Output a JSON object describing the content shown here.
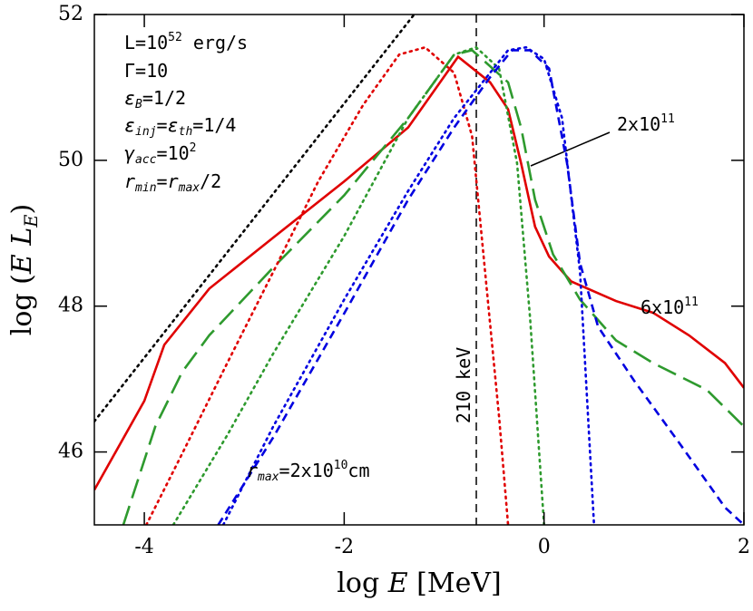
{
  "chart_data": {
    "type": "line",
    "xlabel": [
      {
        "text": "log "
      },
      {
        "text": "E",
        "style": "italic"
      },
      {
        "text": " [MeV]"
      }
    ],
    "ylabel": [
      {
        "text": "log ("
      },
      {
        "text": "E",
        "style": "italic"
      },
      {
        "text": " "
      },
      {
        "text": "L",
        "style": "italic"
      },
      {
        "text": "E",
        "style": "sub"
      },
      {
        "text": ")"
      }
    ],
    "xlim": [
      -4.5,
      2
    ],
    "ylim": [
      45,
      52
    ],
    "xticks": [
      -4,
      -2,
      0,
      2
    ],
    "yticks": [
      46,
      48,
      50,
      52
    ],
    "reference_line_x": -0.678,
    "series": [
      {
        "color": "#e00000",
        "dash": "solid",
        "x": [
          -4.5,
          -4,
          -3.8,
          -3.35,
          -2.71,
          -2,
          -1.36,
          -0.86,
          -0.54,
          -0.36,
          -0.23,
          -0.09,
          0.05,
          0.27,
          0.72,
          1.09,
          1.45,
          1.81,
          2
        ],
        "values": [
          45.48,
          46.7,
          47.47,
          48.24,
          48.94,
          49.71,
          50.45,
          51.42,
          51.07,
          50.7,
          49.96,
          49.09,
          48.68,
          48.34,
          48.07,
          47.91,
          47.6,
          47.22,
          46.88
        ]
      },
      {
        "color": "#2e9a2e",
        "dash": "long",
        "x": [
          -4.21,
          -3.89,
          -3.62,
          -3.35,
          -2.71,
          -2,
          -1.36,
          -0.9,
          -0.72,
          -0.36,
          -0.23,
          -0.09,
          0.09,
          0.36,
          0.72,
          1.09,
          1.63,
          2
        ],
        "values": [
          45,
          46.35,
          47.1,
          47.6,
          48.53,
          49.52,
          50.58,
          51.45,
          51.51,
          51.07,
          50.45,
          49.46,
          48.71,
          48.09,
          47.53,
          47.22,
          46.85,
          46.35
        ]
      },
      {
        "color": "#e00000",
        "dash": "dot",
        "x": [
          -3.98,
          -3.62,
          -3.17,
          -2.71,
          -2.26,
          -1.81,
          -1.45,
          -1.19,
          -0.9,
          -0.72,
          -0.59,
          -0.45,
          -0.36
        ],
        "values": [
          45,
          45.98,
          47.22,
          48.47,
          49.71,
          50.76,
          51.45,
          51.55,
          51.2,
          50.33,
          48.47,
          46.48,
          45
        ]
      },
      {
        "color": "#2e9a2e",
        "dash": "dot",
        "x": [
          -3.71,
          -3.17,
          -2.71,
          -2,
          -1.36,
          -0.9,
          -0.68,
          -0.45,
          -0.27,
          -0.14,
          0
        ],
        "values": [
          45,
          46.23,
          47.35,
          48.96,
          50.58,
          51.45,
          51.55,
          51.26,
          49.96,
          47.84,
          45
        ]
      },
      {
        "color": "#0000e0",
        "dash": "dot",
        "x": [
          -3.21,
          -2.71,
          -2,
          -1.36,
          -0.9,
          -0.54,
          -0.36,
          -0.18,
          0,
          0.18,
          0.36,
          0.5
        ],
        "values": [
          45,
          46.35,
          48.09,
          49.58,
          50.58,
          51.2,
          51.51,
          51.55,
          51.39,
          50.58,
          48.47,
          45
        ]
      },
      {
        "color": "#0000e0",
        "dash": "short",
        "x": [
          -3.26,
          -2.71,
          -2,
          -1.36,
          -0.9,
          -0.54,
          -0.32,
          -0.14,
          0.05,
          0.23,
          0.36,
          0.54,
          0.9,
          1.36,
          1.81,
          2
        ],
        "values": [
          45,
          46.2,
          47.9,
          49.46,
          50.45,
          51.14,
          51.51,
          51.51,
          51.26,
          49.96,
          48.59,
          47.72,
          46.98,
          46.11,
          45.24,
          45
        ]
      },
      {
        "color": "#000000",
        "dash": "dot",
        "x": [
          -4.5,
          -1.3
        ],
        "values": [
          46.42,
          52
        ]
      }
    ],
    "annotations": [
      {
        "segments": [
          {
            "text": "L=10"
          },
          {
            "text": "52",
            "style": "sup"
          },
          {
            "text": " erg/s"
          }
        ]
      },
      {
        "segments": [
          {
            "text": "Γ=10"
          }
        ]
      },
      {
        "segments": [
          {
            "text": "ε",
            "style": "italic"
          },
          {
            "text": "B",
            "style": "sub"
          },
          {
            "text": "=1/2"
          }
        ]
      },
      {
        "segments": [
          {
            "text": "ε",
            "style": "italic"
          },
          {
            "text": "inj",
            "style": "sub"
          },
          {
            "text": "="
          },
          {
            "text": "ε",
            "style": "italic"
          },
          {
            "text": "th",
            "style": "sub"
          },
          {
            "text": "=1/4"
          }
        ]
      },
      {
        "segments": [
          {
            "text": "γ",
            "style": "italic"
          },
          {
            "text": "acc",
            "style": "sub"
          },
          {
            "text": "=10"
          },
          {
            "text": "2",
            "style": "sup"
          }
        ]
      },
      {
        "segments": [
          {
            "text": "r",
            "style": "italic"
          },
          {
            "text": "min",
            "style": "sub"
          },
          {
            "text": "="
          },
          {
            "text": "r",
            "style": "italic"
          },
          {
            "text": "max",
            "style": "sub"
          },
          {
            "text": "/2"
          }
        ]
      },
      {
        "segments": [
          {
            "text": "r",
            "style": "italic"
          },
          {
            "text": "max",
            "style": "sub"
          },
          {
            "text": "=2x10"
          },
          {
            "text": "10",
            "style": "sup"
          },
          {
            "text": "cm"
          }
        ]
      },
      {
        "segments": [
          {
            "text": "2x10"
          },
          {
            "text": "11",
            "style": "sup"
          }
        ]
      },
      {
        "segments": [
          {
            "text": "6x10"
          },
          {
            "text": "11",
            "style": "sup"
          }
        ]
      },
      {
        "segments": [
          {
            "text": "210 keV"
          }
        ]
      }
    ]
  }
}
